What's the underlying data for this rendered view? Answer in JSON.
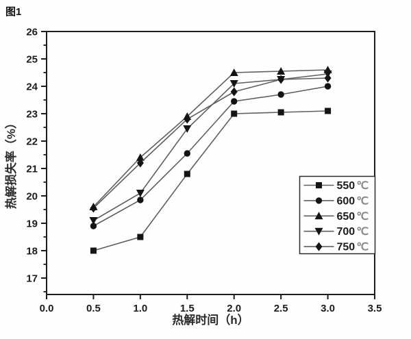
{
  "figure_label": "图1",
  "chart_data": {
    "type": "line",
    "x": [
      0.5,
      1.0,
      1.5,
      2.0,
      2.5,
      3.0
    ],
    "series": [
      {
        "name": "550℃",
        "marker": "square",
        "values": [
          18.0,
          18.5,
          20.8,
          23.0,
          23.05,
          23.1
        ]
      },
      {
        "name": "600℃",
        "marker": "circle",
        "values": [
          18.9,
          19.85,
          21.55,
          23.45,
          23.7,
          24.0
        ]
      },
      {
        "name": "650℃",
        "marker": "triangle-up",
        "values": [
          19.6,
          21.4,
          22.9,
          24.5,
          24.55,
          24.6
        ]
      },
      {
        "name": "700℃",
        "marker": "triangle-down",
        "values": [
          19.1,
          20.1,
          22.45,
          24.1,
          24.25,
          24.45
        ]
      },
      {
        "name": "750℃",
        "marker": "diamond",
        "values": [
          19.55,
          21.2,
          22.8,
          23.8,
          24.25,
          24.3
        ]
      }
    ],
    "title": "",
    "xlabel": "热解时间（h）",
    "ylabel": "热解损失率（%）",
    "xlim": [
      0.0,
      3.5
    ],
    "ylim": [
      16.4,
      26.0
    ],
    "xticks": [
      0.0,
      0.5,
      1.0,
      1.5,
      2.0,
      2.5,
      3.0,
      3.5
    ],
    "yticks": [
      17,
      18,
      19,
      20,
      21,
      22,
      23,
      24,
      25,
      26
    ],
    "y_minor_step": 0.5,
    "grid": false,
    "legend_position": "right-center",
    "colors": {
      "line": "#5f5f5f",
      "marker": "#141414",
      "axis": "#1c1c1c",
      "legend_unit": "#8a8a8a",
      "background": "#fefefe"
    }
  }
}
